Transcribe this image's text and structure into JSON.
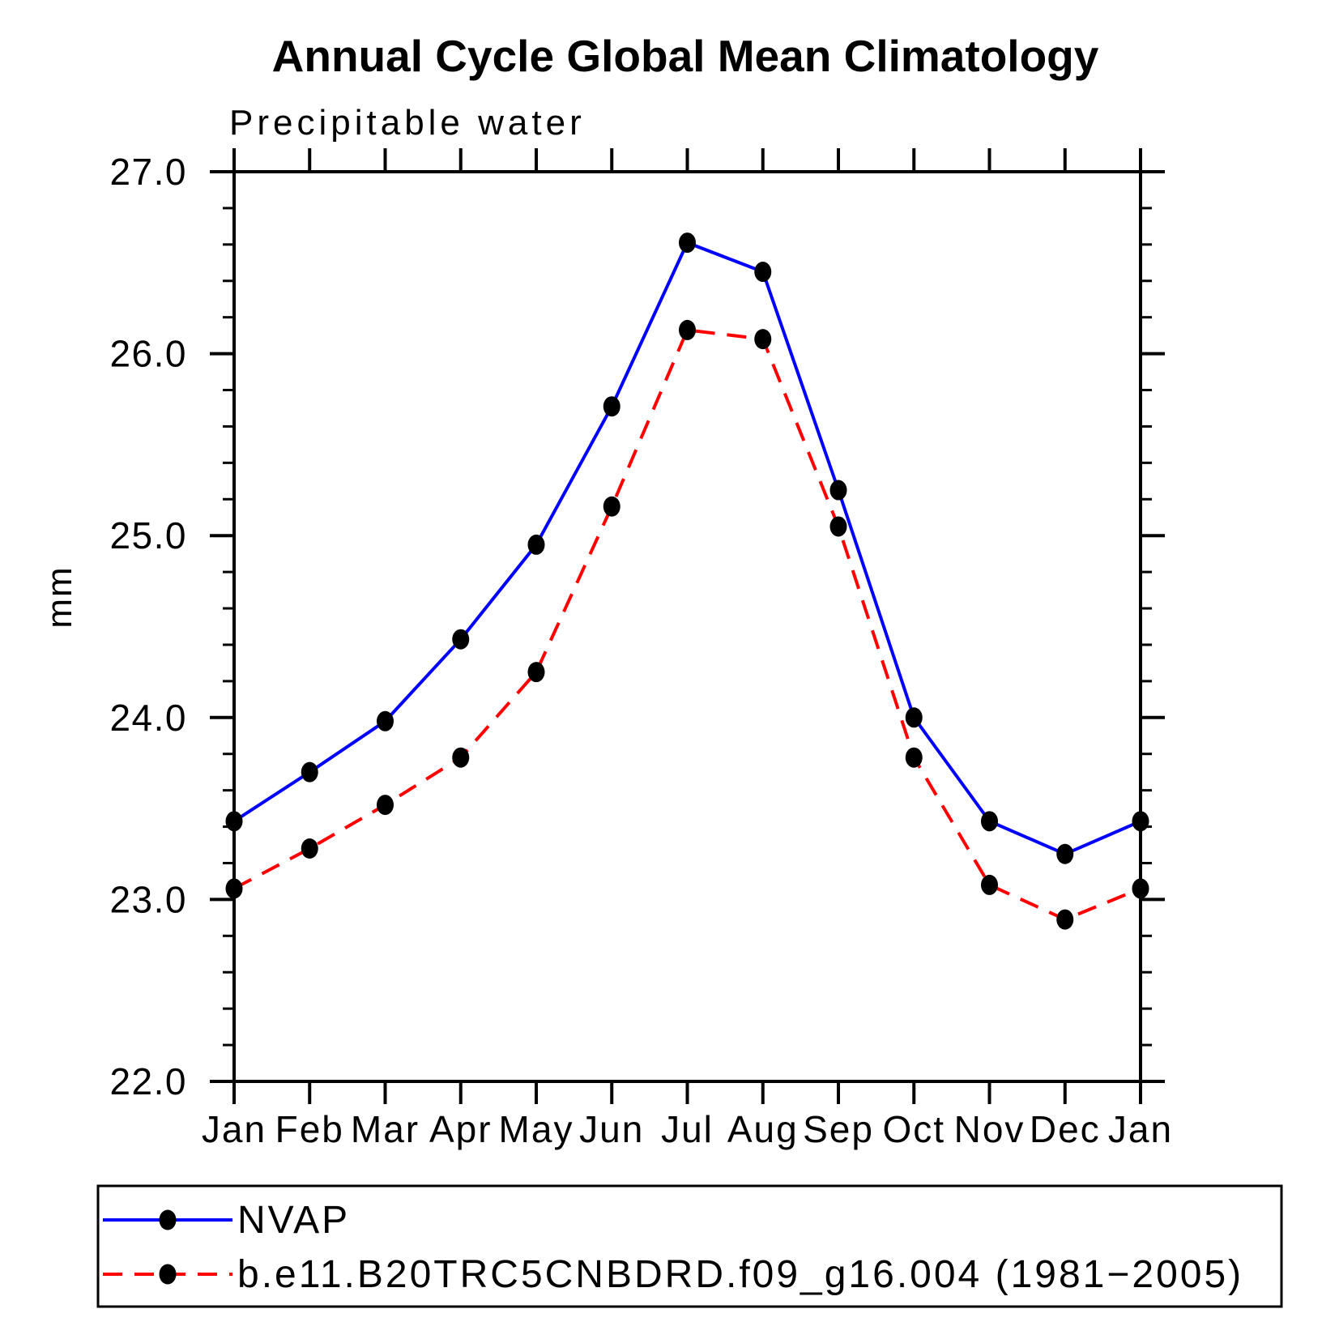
{
  "chart_data": {
    "type": "line",
    "title": "Annual Cycle Global Mean Climatology",
    "subtitle": "Precipitable water",
    "ylabel": "mm",
    "categories": [
      "Jan",
      "Feb",
      "Mar",
      "Apr",
      "May",
      "Jun",
      "Jul",
      "Aug",
      "Sep",
      "Oct",
      "Nov",
      "Dec",
      "Jan"
    ],
    "ylim": [
      22.0,
      27.0
    ],
    "ytick_major": 1.0,
    "ytick_minor": 0.2,
    "ytick_labels": [
      "22.0",
      "23.0",
      "24.0",
      "25.0",
      "26.0",
      "27.0"
    ],
    "grid": false,
    "legend_position": "bottom",
    "frame_color": "#000000",
    "marker_color": "#000000",
    "series": [
      {
        "name": "NVAP",
        "color": "#0000ff",
        "style": "solid",
        "marker": "filled-circle",
        "values": [
          23.43,
          23.7,
          23.98,
          24.43,
          24.95,
          25.71,
          26.61,
          26.45,
          25.25,
          24.0,
          23.43,
          23.25,
          23.43
        ]
      },
      {
        "name": "b.e11.B20TRC5CNBDRD.f09_g16.004 (1981−2005)",
        "color": "#ff0000",
        "style": "dashed",
        "marker": "filled-circle",
        "values": [
          23.06,
          23.28,
          23.52,
          23.78,
          24.25,
          25.16,
          26.13,
          26.08,
          25.05,
          23.78,
          23.08,
          22.89,
          23.06
        ]
      }
    ]
  }
}
